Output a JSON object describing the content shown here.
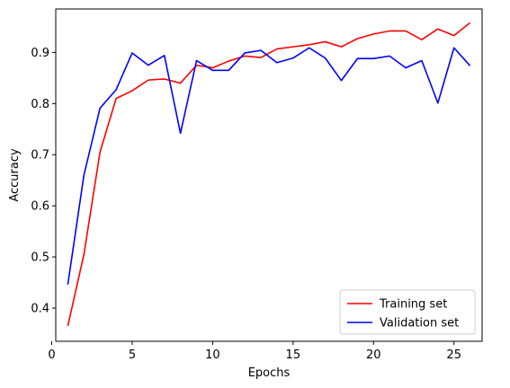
{
  "chart_data": {
    "type": "line",
    "title": "",
    "xlabel": "Epochs",
    "ylabel": "Accuracy",
    "xlim": [
      0.25,
      26.75
    ],
    "ylim": [
      0.335,
      0.985
    ],
    "xticks": [
      0,
      5,
      10,
      15,
      20,
      25
    ],
    "yticks": [
      0.4,
      0.5,
      0.6,
      0.7,
      0.8,
      0.9
    ],
    "xtick_labels": [
      "0",
      "5",
      "10",
      "15",
      "20",
      "25"
    ],
    "ytick_labels": [
      "0.4",
      "0.5",
      "0.6",
      "0.7",
      "0.8",
      "0.9"
    ],
    "grid": false,
    "legend_position": "lower-right",
    "x": [
      1,
      2,
      3,
      4,
      5,
      6,
      7,
      8,
      9,
      10,
      11,
      12,
      13,
      14,
      15,
      16,
      17,
      18,
      19,
      20,
      21,
      22,
      23,
      24,
      25,
      26
    ],
    "series": [
      {
        "name": "Training set",
        "color": "#ff0000",
        "values": [
          0.365,
          0.505,
          0.705,
          0.81,
          0.825,
          0.846,
          0.848,
          0.84,
          0.875,
          0.87,
          0.883,
          0.893,
          0.89,
          0.907,
          0.911,
          0.915,
          0.921,
          0.911,
          0.927,
          0.936,
          0.942,
          0.942,
          0.925,
          0.946,
          0.933,
          0.958
        ]
      },
      {
        "name": "Validation set",
        "color": "#0000ff",
        "values": [
          0.446,
          0.66,
          0.791,
          0.827,
          0.899,
          0.875,
          0.894,
          0.742,
          0.884,
          0.865,
          0.865,
          0.899,
          0.904,
          0.88,
          0.889,
          0.909,
          0.889,
          0.845,
          0.888,
          0.888,
          0.893,
          0.87,
          0.884,
          0.801,
          0.909,
          0.874
        ]
      }
    ]
  }
}
